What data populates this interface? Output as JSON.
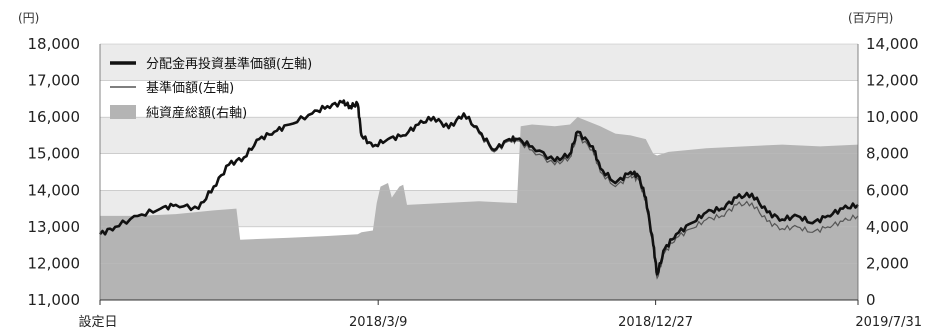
{
  "chart_data": {
    "type": "line",
    "left_axis": {
      "unit": "(円)",
      "ylim": [
        11000,
        18000
      ],
      "ticks": [
        "11,000",
        "12,000",
        "13,000",
        "14,000",
        "15,000",
        "16,000",
        "17,000",
        "18,000"
      ],
      "tick_values": [
        11000,
        12000,
        13000,
        14000,
        15000,
        16000,
        17000,
        18000
      ]
    },
    "right_axis": {
      "unit": "(百万円)",
      "ylim": [
        0,
        14000
      ],
      "ticks": [
        "0",
        "2,000",
        "4,000",
        "6,000",
        "8,000",
        "10,000",
        "12,000",
        "14,000"
      ],
      "tick_values": [
        0,
        2000,
        4000,
        6000,
        8000,
        10000,
        12000,
        14000
      ]
    },
    "x_axis": {
      "ticks": [
        "設定日",
        "2018/3/9",
        "2018/12/27",
        "2019/7/31"
      ],
      "tick_fractions": [
        0,
        0.367,
        0.733,
        1.0
      ]
    },
    "legend": {
      "placement": "top-left",
      "items": [
        {
          "label": "分配金再投資基準価額(左軸)",
          "style": "thick-line",
          "color": "#111111"
        },
        {
          "label": "基準価額(左軸)",
          "style": "thin-line",
          "color": "#555555"
        },
        {
          "label": "純資産総額(右軸)",
          "style": "area",
          "color": "#b4b4b4"
        }
      ]
    },
    "colors": {
      "band": "#ebebeb",
      "area": "#b4b4b4",
      "reinvested_line": "#111111",
      "nav_line": "#555555",
      "grid": "#bbbbbb"
    },
    "grid": true,
    "series": [
      {
        "name": "分配金再投資基準価額(左軸)",
        "axis": "left",
        "points": [
          [
            0,
            12800
          ],
          [
            0.02,
            13000
          ],
          [
            0.05,
            13300
          ],
          [
            0.08,
            13500
          ],
          [
            0.1,
            13600
          ],
          [
            0.13,
            13500
          ],
          [
            0.15,
            14100
          ],
          [
            0.17,
            14700
          ],
          [
            0.19,
            14900
          ],
          [
            0.21,
            15400
          ],
          [
            0.23,
            15600
          ],
          [
            0.25,
            15800
          ],
          [
            0.28,
            16100
          ],
          [
            0.3,
            16300
          ],
          [
            0.32,
            16400
          ],
          [
            0.33,
            16300
          ],
          [
            0.34,
            16350
          ],
          [
            0.345,
            15500
          ],
          [
            0.36,
            15200
          ],
          [
            0.38,
            15400
          ],
          [
            0.4,
            15500
          ],
          [
            0.42,
            15800
          ],
          [
            0.44,
            16000
          ],
          [
            0.46,
            15700
          ],
          [
            0.48,
            16100
          ],
          [
            0.5,
            15600
          ],
          [
            0.52,
            15100
          ],
          [
            0.54,
            15400
          ],
          [
            0.55,
            15400
          ],
          [
            0.57,
            15200
          ],
          [
            0.6,
            14800
          ],
          [
            0.62,
            15000
          ],
          [
            0.63,
            15600
          ],
          [
            0.65,
            15200
          ],
          [
            0.66,
            14600
          ],
          [
            0.68,
            14200
          ],
          [
            0.7,
            14500
          ],
          [
            0.71,
            14400
          ],
          [
            0.72,
            13800
          ],
          [
            0.73,
            12500
          ],
          [
            0.735,
            11700
          ],
          [
            0.745,
            12400
          ],
          [
            0.76,
            12800
          ],
          [
            0.78,
            13100
          ],
          [
            0.8,
            13400
          ],
          [
            0.82,
            13500
          ],
          [
            0.84,
            13800
          ],
          [
            0.86,
            13900
          ],
          [
            0.88,
            13400
          ],
          [
            0.9,
            13200
          ],
          [
            0.92,
            13300
          ],
          [
            0.94,
            13100
          ],
          [
            0.96,
            13300
          ],
          [
            0.98,
            13500
          ],
          [
            1.0,
            13600
          ]
        ]
      },
      {
        "name": "基準価額(左軸)",
        "axis": "left",
        "points": [
          [
            0,
            12800
          ],
          [
            0.02,
            13000
          ],
          [
            0.05,
            13300
          ],
          [
            0.08,
            13500
          ],
          [
            0.1,
            13600
          ],
          [
            0.13,
            13500
          ],
          [
            0.15,
            14100
          ],
          [
            0.17,
            14700
          ],
          [
            0.19,
            14900
          ],
          [
            0.21,
            15400
          ],
          [
            0.23,
            15600
          ],
          [
            0.25,
            15800
          ],
          [
            0.28,
            16100
          ],
          [
            0.3,
            16300
          ],
          [
            0.32,
            16400
          ],
          [
            0.33,
            16300
          ],
          [
            0.34,
            16350
          ],
          [
            0.345,
            15500
          ],
          [
            0.36,
            15200
          ],
          [
            0.38,
            15400
          ],
          [
            0.4,
            15500
          ],
          [
            0.42,
            15800
          ],
          [
            0.44,
            16000
          ],
          [
            0.46,
            15700
          ],
          [
            0.48,
            16100
          ],
          [
            0.5,
            15550
          ],
          [
            0.52,
            15050
          ],
          [
            0.54,
            15350
          ],
          [
            0.55,
            15350
          ],
          [
            0.57,
            15100
          ],
          [
            0.6,
            14700
          ],
          [
            0.62,
            14900
          ],
          [
            0.63,
            15500
          ],
          [
            0.65,
            15100
          ],
          [
            0.66,
            14500
          ],
          [
            0.68,
            14100
          ],
          [
            0.7,
            14400
          ],
          [
            0.71,
            14300
          ],
          [
            0.72,
            13700
          ],
          [
            0.73,
            12400
          ],
          [
            0.735,
            11600
          ],
          [
            0.745,
            12300
          ],
          [
            0.76,
            12700
          ],
          [
            0.78,
            12950
          ],
          [
            0.8,
            13200
          ],
          [
            0.82,
            13300
          ],
          [
            0.84,
            13600
          ],
          [
            0.86,
            13650
          ],
          [
            0.88,
            13150
          ],
          [
            0.9,
            12950
          ],
          [
            0.92,
            13000
          ],
          [
            0.94,
            12850
          ],
          [
            0.96,
            13000
          ],
          [
            0.98,
            13150
          ],
          [
            1.0,
            13300
          ]
        ]
      },
      {
        "name": "純資産総額(右軸)",
        "axis": "right",
        "points": [
          [
            0,
            4600
          ],
          [
            0.05,
            4600
          ],
          [
            0.1,
            4700
          ],
          [
            0.15,
            4900
          ],
          [
            0.18,
            5000
          ],
          [
            0.185,
            3300
          ],
          [
            0.25,
            3400
          ],
          [
            0.3,
            3500
          ],
          [
            0.34,
            3600
          ],
          [
            0.345,
            3700
          ],
          [
            0.36,
            3800
          ],
          [
            0.365,
            5300
          ],
          [
            0.37,
            6200
          ],
          [
            0.38,
            6400
          ],
          [
            0.385,
            5600
          ],
          [
            0.395,
            6200
          ],
          [
            0.4,
            6300
          ],
          [
            0.405,
            5200
          ],
          [
            0.45,
            5300
          ],
          [
            0.5,
            5400
          ],
          [
            0.55,
            5300
          ],
          [
            0.555,
            9500
          ],
          [
            0.57,
            9600
          ],
          [
            0.6,
            9500
          ],
          [
            0.62,
            9600
          ],
          [
            0.63,
            10000
          ],
          [
            0.66,
            9500
          ],
          [
            0.68,
            9100
          ],
          [
            0.7,
            9000
          ],
          [
            0.72,
            8800
          ],
          [
            0.73,
            8000
          ],
          [
            0.735,
            7900
          ],
          [
            0.75,
            8100
          ],
          [
            0.8,
            8300
          ],
          [
            0.85,
            8400
          ],
          [
            0.9,
            8500
          ],
          [
            0.95,
            8400
          ],
          [
            1.0,
            8500
          ]
        ]
      }
    ]
  }
}
